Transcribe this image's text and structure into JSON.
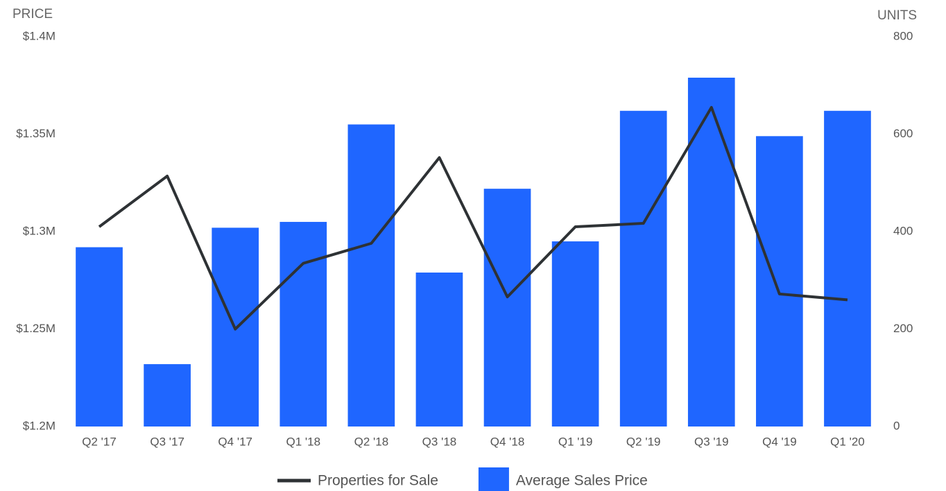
{
  "chart_data": {
    "type": "bar-line",
    "y_label": "PRICE",
    "y2_label": "UNITS",
    "categories": [
      "Q2 '17",
      "Q3 '17",
      "Q4 '17",
      "Q1 '18",
      "Q2 '18",
      "Q3 '18",
      "Q4 '18",
      "Q1 '19",
      "Q2 '19",
      "Q3 '19",
      "Q4 '19",
      "Q1 '20"
    ],
    "series": [
      {
        "name": "Properties for Sale",
        "type": "line",
        "axis": "y2",
        "color": "#2e3235",
        "values": [
          410,
          514,
          200,
          335,
          376,
          552,
          266,
          410,
          417,
          655,
          272,
          260
        ]
      },
      {
        "name": "Average Sales Price",
        "type": "bar",
        "color": "#1f66ff",
        "values": [
          1292000,
          1232000,
          1302000,
          1305000,
          1355000,
          1279000,
          1322000,
          1295000,
          1362000,
          1379000,
          1349000,
          1362000
        ]
      }
    ],
    "ylim": [
      1200000,
      1400000
    ],
    "yticks": [
      {
        "value": 1200000,
        "label": "$1.2M"
      },
      {
        "value": 1250000,
        "label": "$1.25M"
      },
      {
        "value": 1300000,
        "label": "$1.3M"
      },
      {
        "value": 1350000,
        "label": "$1.35M"
      },
      {
        "value": 1400000,
        "label": "$1.4M"
      }
    ],
    "y2lim": [
      0,
      800
    ],
    "y2ticks": [
      0,
      200,
      400,
      600,
      800
    ],
    "grid": false,
    "legend": "bottom"
  }
}
